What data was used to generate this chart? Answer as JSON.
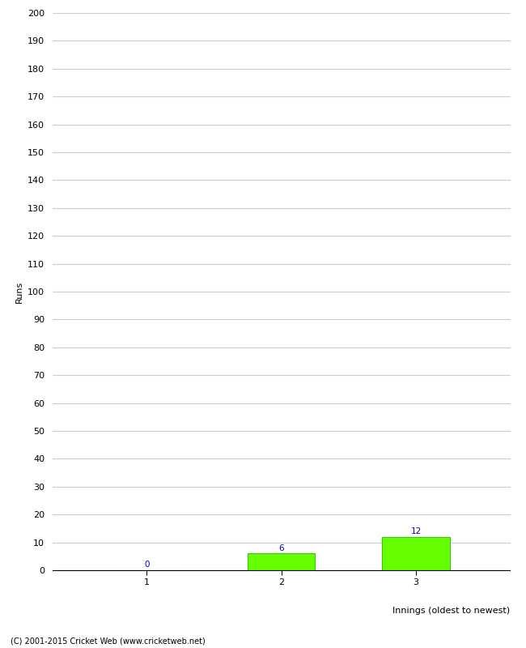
{
  "categories": [
    "1",
    "2",
    "3"
  ],
  "values": [
    0,
    6,
    12
  ],
  "bar_color": "#66ff00",
  "bar_edge_color": "#33cc00",
  "ylabel": "Runs",
  "xlabel": "Innings (oldest to newest)",
  "ylim": [
    0,
    200
  ],
  "yticks": [
    0,
    10,
    20,
    30,
    40,
    50,
    60,
    70,
    80,
    90,
    100,
    110,
    120,
    130,
    140,
    150,
    160,
    170,
    180,
    190,
    200
  ],
  "value_label_color": "#0000cc",
  "value_label_fontsize": 7.5,
  "grid_color": "#cccccc",
  "background_color": "#ffffff",
  "tick_label_fontsize": 8,
  "axis_label_fontsize": 8,
  "footnote": "(C) 2001-2015 Cricket Web (www.cricketweb.net)"
}
